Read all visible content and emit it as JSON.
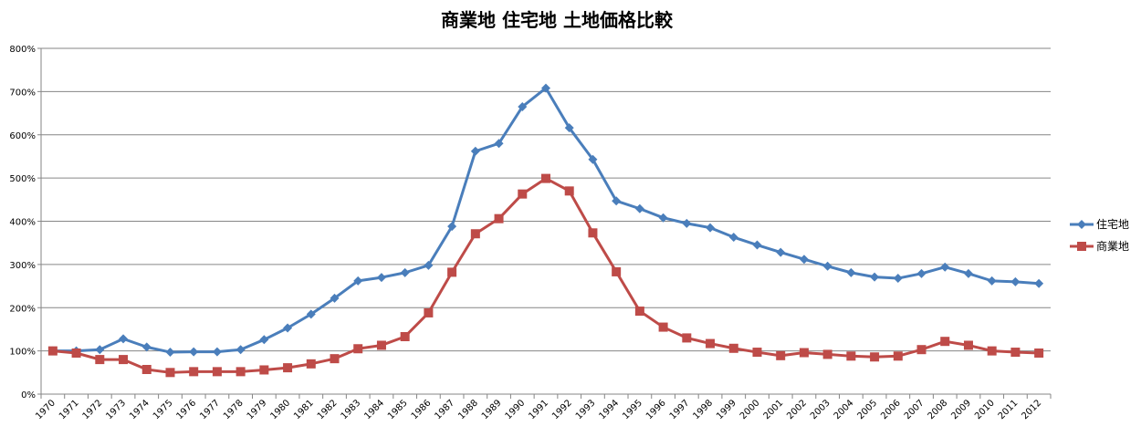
{
  "chart_data": {
    "type": "line",
    "title": "商業地 住宅地 土地価格比較",
    "xlabel": "",
    "ylabel": "",
    "ylim": [
      0,
      800
    ],
    "yticks": [
      "0%",
      "100%",
      "200%",
      "300%",
      "400%",
      "500%",
      "600%",
      "700%",
      "800%"
    ],
    "grid": true,
    "legend_position": "right",
    "categories": [
      "1970",
      "1971",
      "1972",
      "1973",
      "1974",
      "1975",
      "1976",
      "1977",
      "1978",
      "1979",
      "1980",
      "1981",
      "1982",
      "1983",
      "1984",
      "1985",
      "1986",
      "1987",
      "1988",
      "1989",
      "1990",
      "1991",
      "1992",
      "1993",
      "1994",
      "1995",
      "1996",
      "1997",
      "1998",
      "1999",
      "2000",
      "2001",
      "2002",
      "2003",
      "2004",
      "2005",
      "2006",
      "2007",
      "2008",
      "2009",
      "2010",
      "2011",
      "2012"
    ],
    "series": [
      {
        "name": "住宅地",
        "color": "#4a7ebb",
        "marker": "diamond",
        "values": [
          100,
          100,
          103,
          128,
          109,
          97,
          98,
          98,
          103,
          126,
          153,
          185,
          222,
          262,
          270,
          281,
          298,
          388,
          562,
          580,
          665,
          708,
          616,
          543,
          447,
          429,
          408,
          395,
          385,
          363,
          345,
          328,
          312,
          296,
          281,
          271,
          268,
          279,
          294,
          279,
          262,
          260,
          256
        ]
      },
      {
        "name": "商業地",
        "color": "#be4b48",
        "marker": "square",
        "values": [
          100,
          95,
          80,
          80,
          57,
          50,
          52,
          52,
          52,
          56,
          61,
          70,
          82,
          105,
          113,
          133,
          188,
          282,
          371,
          406,
          463,
          499,
          470,
          373,
          283,
          192,
          155,
          130,
          117,
          106,
          97,
          89,
          96,
          92,
          88,
          86,
          88,
          103,
          122,
          113,
          100,
          97,
          95
        ]
      }
    ]
  }
}
